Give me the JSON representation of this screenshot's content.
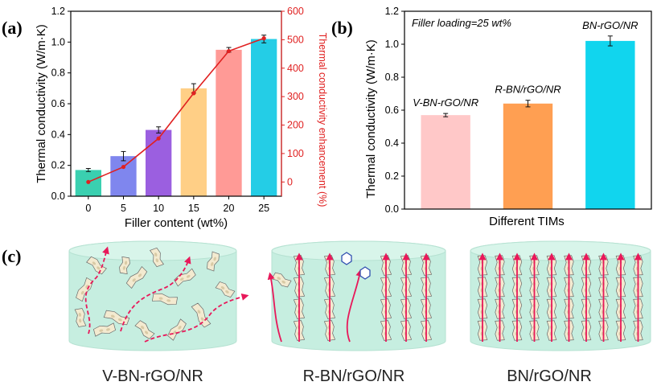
{
  "panels": {
    "a": "(a)",
    "b": "(b)",
    "c": "(c)"
  },
  "chart_data": [
    {
      "type": "bar",
      "panel": "(a)",
      "xlabel": "Filler content (wt%)",
      "ylabel": "Thermal conductivity (W/m·K)",
      "y2label": "Thermal conductivity enhancement (%)",
      "categories": [
        "0",
        "5",
        "10",
        "15",
        "20",
        "25"
      ],
      "values": [
        0.17,
        0.26,
        0.43,
        0.7,
        0.95,
        1.02
      ],
      "errors": [
        0.01,
        0.03,
        0.02,
        0.03,
        0.015,
        0.025
      ],
      "bar_colors": [
        "#3ad0b0",
        "#7f86ee",
        "#9b5fe0",
        "#ffcf86",
        "#ff9a96",
        "#24cde6"
      ],
      "ylim": [
        0,
        1.2
      ],
      "yticks": [
        "0.0",
        "0.2",
        "0.4",
        "0.6",
        "0.8",
        "1.0",
        "1.2"
      ],
      "y2lim": [
        -50,
        600
      ],
      "y2ticks": [
        "0",
        "100",
        "200",
        "300",
        "400",
        "500",
        "600"
      ],
      "line_series": {
        "values": [
          0,
          53,
          153,
          312,
          460,
          505
        ],
        "color": "#e02020"
      }
    },
    {
      "type": "bar",
      "panel": "(b)",
      "xlabel": "Different TIMs",
      "ylabel": "Thermal conductivity (W/m·K)",
      "annotation": "Filler loading=25 wt%",
      "categories": [
        "V-BN-rGO/NR",
        "R-BN/rGO/NR",
        "BN-rGO/NR"
      ],
      "values": [
        0.57,
        0.64,
        1.02
      ],
      "errors": [
        0.01,
        0.02,
        0.03
      ],
      "bar_colors": [
        "#ffc8c8",
        "#ff9f52",
        "#11d5ee"
      ],
      "ylim": [
        0,
        1.2
      ],
      "yticks": [
        "0.0",
        "0.2",
        "0.4",
        "0.6",
        "0.8",
        "1.0",
        "1.2"
      ]
    }
  ],
  "schematics": {
    "captions": [
      "V-BN-rGO/NR",
      "R-BN/rGO/NR",
      "BN/rGO/NR"
    ],
    "colors": {
      "matrix": "#c6eee0",
      "flake": "#f3ead0",
      "arrow": "#e8185a"
    }
  }
}
